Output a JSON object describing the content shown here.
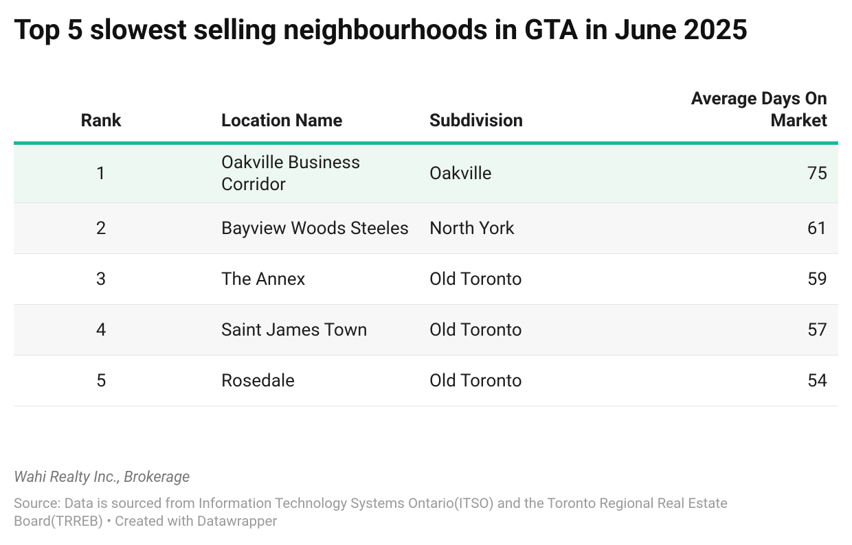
{
  "header": {
    "title": "Top 5 slowest selling neighbourhoods in GTA in June 2025"
  },
  "table": {
    "columns": [
      "Rank",
      "Location Name",
      "Subdivision",
      "Average Days On Market"
    ],
    "rows": [
      [
        1,
        "Oakville Business Corridor",
        "Oakville",
        75
      ],
      [
        2,
        "Bayview Woods Steeles",
        "North York",
        61
      ],
      [
        3,
        "The Annex",
        "Old Toronto",
        59
      ],
      [
        4,
        "Saint James Town",
        "Old Toronto",
        57
      ],
      [
        5,
        "Rosedale",
        "Old Toronto",
        54
      ]
    ]
  },
  "footer": {
    "byline": "Wahi Realty Inc., Brokerage",
    "source": "Source: Data is sourced from Information Technology Systems Ontario(ITSO) and the Toronto Regional Real Estate Board(TRREB) • Created with Datawrapper"
  }
}
